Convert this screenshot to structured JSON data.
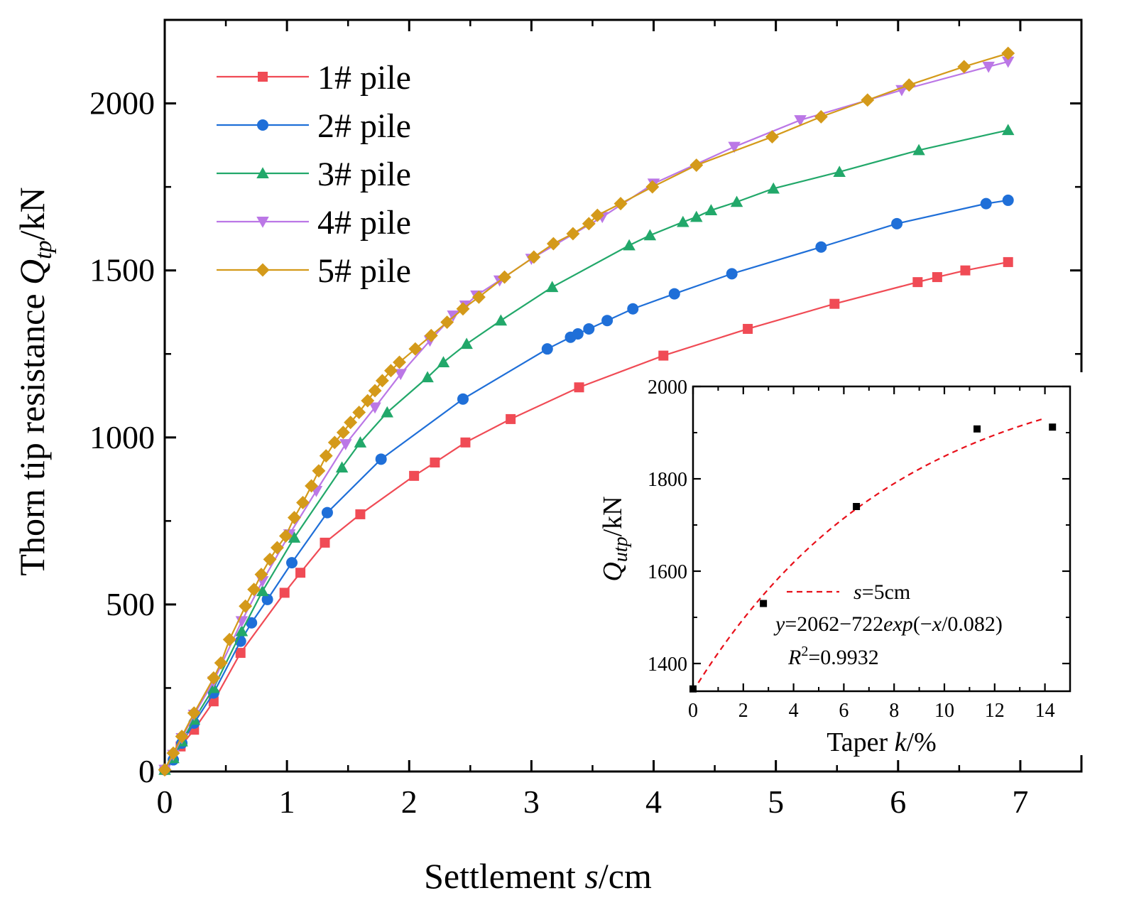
{
  "chart_data": [
    {
      "type": "line",
      "xlabel": {
        "prefix": "Settlement  ",
        "var": "s",
        "suffix": "/cm"
      },
      "ylabel": {
        "prefix": "Thorn tip resistance ",
        "var": "Q",
        "sub": "tp",
        "suffix": "/kN"
      },
      "xlim": [
        0,
        7.5
      ],
      "ylim": [
        0,
        2250
      ],
      "xticks": [
        "0",
        "1",
        "2",
        "3",
        "4",
        "5",
        "6",
        "7"
      ],
      "yticks": [
        "0",
        "500",
        "1000",
        "1500",
        "2000"
      ],
      "legend_position": "top-left",
      "grid": false,
      "series": [
        {
          "name": "1# pile",
          "color": "#f04b55",
          "marker": "square",
          "x": [
            0,
            0.13,
            0.24,
            0.4,
            0.62,
            0.98,
            1.11,
            1.31,
            1.6,
            2.04,
            2.21,
            2.46,
            2.83,
            3.39,
            4.08,
            4.77,
            5.48,
            6.16,
            6.32,
            6.55,
            6.9
          ],
          "y": [
            5,
            75,
            125,
            210,
            355,
            535,
            595,
            685,
            770,
            885,
            925,
            985,
            1055,
            1150,
            1245,
            1325,
            1400,
            1465,
            1480,
            1500,
            1525
          ]
        },
        {
          "name": "2# pile",
          "color": "#1f6fd8",
          "marker": "circle",
          "x": [
            0,
            0.07,
            0.14,
            0.24,
            0.4,
            0.62,
            0.71,
            0.84,
            1.04,
            1.33,
            1.77,
            2.44,
            3.13,
            3.32,
            3.38,
            3.47,
            3.62,
            3.83,
            4.17,
            4.64,
            5.37,
            5.99,
            6.72,
            6.9
          ],
          "y": [
            5,
            35,
            85,
            145,
            235,
            390,
            445,
            515,
            625,
            775,
            935,
            1115,
            1265,
            1300,
            1310,
            1325,
            1350,
            1385,
            1430,
            1490,
            1570,
            1640,
            1700,
            1710
          ]
        },
        {
          "name": "3# pile",
          "color": "#22a86a",
          "marker": "triangle-up",
          "x": [
            0,
            0.07,
            0.14,
            0.24,
            0.4,
            0.63,
            0.8,
            1.06,
            1.45,
            1.6,
            1.82,
            2.15,
            2.28,
            2.47,
            2.75,
            3.17,
            3.8,
            3.97,
            4.24,
            4.35,
            4.47,
            4.68,
            4.98,
            5.52,
            6.17,
            6.9
          ],
          "y": [
            5,
            40,
            90,
            155,
            250,
            420,
            540,
            700,
            910,
            985,
            1075,
            1180,
            1225,
            1280,
            1350,
            1450,
            1575,
            1605,
            1645,
            1660,
            1680,
            1705,
            1745,
            1795,
            1860,
            1920
          ]
        },
        {
          "name": "4# pile",
          "color": "#bb77e6",
          "marker": "triangle-down",
          "x": [
            0,
            0.07,
            0.14,
            0.24,
            0.4,
            0.63,
            0.8,
            1.02,
            1.24,
            1.48,
            1.72,
            1.93,
            2.17,
            2.36,
            2.46,
            2.55,
            2.74,
            3.0,
            3.58,
            4.0,
            4.66,
            5.2,
            6.03,
            6.74,
            6.9
          ],
          "y": [
            5,
            50,
            100,
            170,
            270,
            450,
            570,
            710,
            840,
            980,
            1090,
            1190,
            1290,
            1365,
            1395,
            1425,
            1470,
            1535,
            1660,
            1760,
            1870,
            1950,
            2040,
            2110,
            2125
          ]
        },
        {
          "name": "5# pile",
          "color": "#d49a1a",
          "marker": "diamond",
          "x": [
            0,
            0.07,
            0.14,
            0.24,
            0.4,
            0.46,
            0.53,
            0.66,
            0.73,
            0.79,
            0.86,
            0.92,
            0.99,
            1.06,
            1.13,
            1.2,
            1.26,
            1.32,
            1.39,
            1.46,
            1.52,
            1.59,
            1.66,
            1.72,
            1.78,
            1.85,
            1.92,
            2.05,
            2.18,
            2.31,
            2.44,
            2.57,
            2.78,
            3.02,
            3.18,
            3.34,
            3.47,
            3.54,
            3.73,
            3.99,
            4.35,
            4.97,
            5.37,
            5.75,
            6.09,
            6.54,
            6.9
          ],
          "y": [
            5,
            55,
            105,
            175,
            280,
            325,
            395,
            495,
            545,
            590,
            635,
            670,
            705,
            760,
            805,
            855,
            900,
            945,
            985,
            1015,
            1045,
            1075,
            1110,
            1140,
            1170,
            1200,
            1225,
            1265,
            1305,
            1345,
            1385,
            1420,
            1480,
            1540,
            1580,
            1610,
            1640,
            1665,
            1700,
            1750,
            1815,
            1900,
            1960,
            2010,
            2055,
            2110,
            2150
          ]
        }
      ]
    },
    {
      "type": "scatter",
      "xlabel": {
        "prefix": "Taper ",
        "var": "k",
        "suffix": "/%"
      },
      "ylabel": {
        "var": "Q",
        "sub": "utp",
        "suffix": "/kN"
      },
      "xlim": [
        0,
        15
      ],
      "ylim": [
        1340,
        2000
      ],
      "xticks": [
        "0",
        "2",
        "4",
        "6",
        "8",
        "10",
        "12",
        "14"
      ],
      "yticks": [
        "1400",
        "1600",
        "1800",
        "2000"
      ],
      "points": {
        "color": "#000000",
        "x": [
          0,
          2.8,
          6.5,
          11.3,
          14.3
        ],
        "y": [
          1345,
          1530,
          1740,
          1908,
          1912
        ]
      },
      "fit": {
        "color": "#e8101a",
        "style": "dashed",
        "a": 2062,
        "b": 722,
        "c": 0.082,
        "x_range": [
          0,
          14.0
        ]
      },
      "legend": {
        "label_var": "s",
        "label_rest": "=5cm",
        "equation": {
          "y": "y",
          "mid": "=2062−722",
          "func": "exp",
          "open": "(−",
          "x": "x",
          "close": "/0.082)"
        },
        "r2": {
          "R": "R",
          "sup": "2",
          "val": "=0.9932"
        }
      }
    }
  ]
}
